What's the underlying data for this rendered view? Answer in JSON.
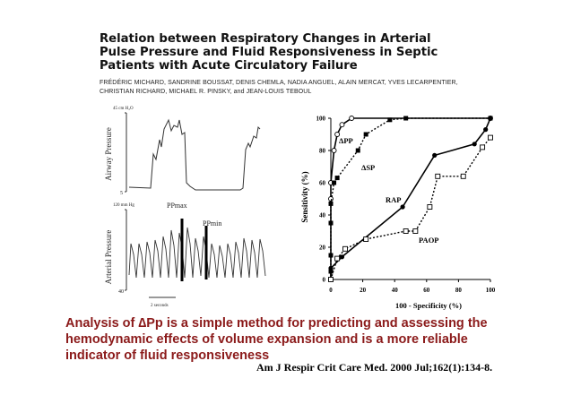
{
  "paper": {
    "title_line1": "Relation between Respiratory Changes in Arterial",
    "title_line2": "Pulse Pressure and Fluid Responsiveness in Septic",
    "title_line3": "Patients with Acute Circulatory Failure",
    "authors_line1": "FRÉDÉRIC MICHARD, SANDRINE BOUSSAT, DENIS CHEMLA, NADIA ANGUEL, ALAIN MERCAT, YVES LECARPENTIER,",
    "authors_line2": "CHRISTIAN RICHARD, MICHAEL R. PINSKY, and JEAN-LOUIS TEBOUL"
  },
  "left_figure": {
    "airway_label": "Airway Pressure",
    "airway_top_tick": "45 cm H₂O",
    "airway_bottom_tick": "5",
    "arterial_label": "Arterial Pressure",
    "arterial_top_tick": "120 mm Hg",
    "arterial_bottom_tick": "40",
    "ppmax_label": "PPmax",
    "ppmin_label": "PPmin",
    "time_label": "2 seconds"
  },
  "chart_data": {
    "type": "line",
    "xlabel": "100 - Specificity (%)",
    "ylabel": "Sensitivity (%)",
    "xlim": [
      0,
      100
    ],
    "ylim": [
      0,
      100
    ],
    "xticks": [
      "0",
      "20",
      "40",
      "60",
      "80",
      "100"
    ],
    "yticks": [
      "0",
      "20",
      "40",
      "60",
      "80",
      "100"
    ],
    "series": [
      {
        "name": "ΔPP",
        "marker": "open-circle",
        "dash": "solid",
        "points": [
          [
            0,
            0
          ],
          [
            0,
            50
          ],
          [
            0,
            60
          ],
          [
            2,
            80
          ],
          [
            4,
            90
          ],
          [
            7,
            96
          ],
          [
            13,
            100
          ],
          [
            100,
            100
          ]
        ]
      },
      {
        "name": "ΔSP",
        "marker": "filled-square",
        "dash": "dotted",
        "points": [
          [
            0,
            0
          ],
          [
            0,
            5
          ],
          [
            0,
            15
          ],
          [
            0,
            35
          ],
          [
            0,
            47
          ],
          [
            2,
            60
          ],
          [
            4,
            63
          ],
          [
            17,
            80
          ],
          [
            22,
            90
          ],
          [
            37,
            99
          ],
          [
            47,
            100
          ],
          [
            100,
            100
          ]
        ]
      },
      {
        "name": "RAP",
        "marker": "filled-circle",
        "dash": "solid",
        "points": [
          [
            0,
            0
          ],
          [
            0,
            7
          ],
          [
            7,
            14
          ],
          [
            45,
            45
          ],
          [
            65,
            77
          ],
          [
            90,
            84
          ],
          [
            97,
            93
          ],
          [
            100,
            100
          ]
        ]
      },
      {
        "name": "PAOP",
        "marker": "open-square",
        "dash": "dotted",
        "points": [
          [
            0,
            0
          ],
          [
            4,
            13
          ],
          [
            9,
            19
          ],
          [
            22,
            25
          ],
          [
            47,
            30
          ],
          [
            53,
            30
          ],
          [
            62,
            45
          ],
          [
            67,
            64
          ],
          [
            83,
            64
          ],
          [
            95,
            82
          ],
          [
            100,
            88
          ]
        ]
      }
    ]
  },
  "caption": {
    "line1": "Analysis of ∆Pp is a simple method for predicting and assessing the",
    "line2": "hemodynamic effects of volume expansion and is a more reliable",
    "line3": "indicator of fluid responsiveness"
  },
  "citation": "Am J Respir Crit Care Med. 2000 Jul;162(1):134-8."
}
